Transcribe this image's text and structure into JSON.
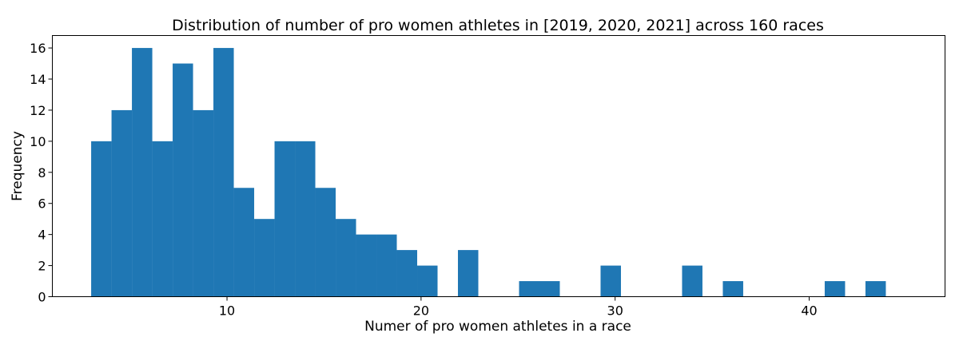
{
  "chart_data": {
    "type": "bar",
    "title": "Distribution of number of pro women athletes in [2019, 2020, 2021] across 160 races",
    "xlabel": "Numer of pro women athletes in a race",
    "ylabel": "Frequency",
    "bin_edges": [
      3.0,
      4.05,
      5.1,
      6.15,
      7.2,
      8.25,
      9.3,
      10.35,
      11.4,
      12.45,
      13.5,
      14.55,
      15.6,
      16.65,
      17.7,
      18.75,
      19.8,
      20.85,
      21.9,
      22.95,
      24.0,
      25.05,
      26.1,
      27.15,
      28.2,
      29.25,
      30.3,
      31.35,
      32.4,
      33.45,
      34.5,
      35.55,
      36.6,
      37.65,
      38.7,
      39.75,
      40.8,
      41.85,
      42.9,
      43.95,
      45.0
    ],
    "values": [
      10,
      12,
      16,
      10,
      15,
      12,
      16,
      7,
      5,
      10,
      10,
      7,
      5,
      4,
      4,
      3,
      2,
      0,
      3,
      0,
      0,
      1,
      1,
      0,
      0,
      2,
      0,
      0,
      0,
      2,
      0,
      1,
      0,
      0,
      0,
      0,
      1,
      0,
      1,
      0
    ],
    "xlim": [
      1.0,
      47.0
    ],
    "ylim": [
      0,
      16.8
    ],
    "xticks": [
      10,
      20,
      30,
      40
    ],
    "yticks": [
      0,
      2,
      4,
      6,
      8,
      10,
      12,
      14,
      16
    ],
    "bar_color": "#1f77b4",
    "grid": false,
    "legend": "none"
  }
}
